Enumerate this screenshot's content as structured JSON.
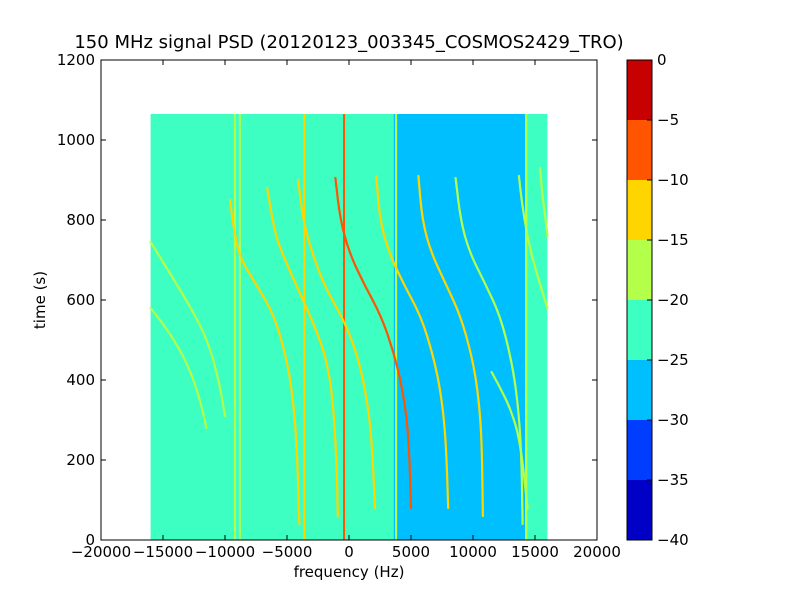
{
  "chart_data": {
    "type": "heatmap",
    "title": "150 MHz signal PSD (20120123_003345_COSMOS2429_TRO)",
    "xlabel": "frequency (Hz)",
    "ylabel": "time (s)",
    "xlim": [
      -20000,
      20000
    ],
    "ylim": [
      0,
      1200
    ],
    "x_ticks": [
      -20000,
      -15000,
      -10000,
      -5000,
      0,
      5000,
      10000,
      15000,
      20000
    ],
    "y_ticks": [
      0,
      200,
      400,
      600,
      800,
      1000,
      1200
    ],
    "x_tick_labels": [
      "−20000",
      "−15000",
      "−10000",
      "−5000",
      "0",
      "5000",
      "10000",
      "15000",
      "20000"
    ],
    "y_tick_labels": [
      "0",
      "200",
      "400",
      "600",
      "800",
      "1000",
      "1200"
    ],
    "data_extent": {
      "x": [
        -16000,
        16000
      ],
      "t": [
        0,
        1065
      ]
    },
    "background_regions": [
      {
        "x_from": -16000,
        "x_to": 3600,
        "level": -22.5
      },
      {
        "x_from": 3600,
        "x_to": 14200,
        "level": -27.5
      },
      {
        "x_from": 14200,
        "x_to": 16000,
        "level": -22.5
      }
    ],
    "vertical_lines": [
      {
        "x": -9200,
        "t_from": 0,
        "t_to": 1065,
        "level": -17.5
      },
      {
        "x": -8800,
        "t_from": 0,
        "t_to": 1065,
        "level": -17.5
      },
      {
        "x": -3600,
        "t_from": 0,
        "t_to": 1065,
        "level": -12.5
      },
      {
        "x": -400,
        "t_from": 0,
        "t_to": 1065,
        "level": -7.5
      },
      {
        "x": 3800,
        "t_from": 0,
        "t_to": 1065,
        "level": -20
      },
      {
        "x": 14300,
        "t_from": 0,
        "t_to": 1065,
        "level": -17.5
      }
    ],
    "doppler_tracks": [
      {
        "level": -17.5,
        "points": [
          [
            -16000,
            745
          ],
          [
            -13500,
            620
          ],
          [
            -11500,
            510
          ],
          [
            -10500,
            400
          ],
          [
            -10000,
            310
          ]
        ]
      },
      {
        "level": -17.5,
        "points": [
          [
            -16000,
            580
          ],
          [
            -14500,
            520
          ],
          [
            -13000,
            440
          ],
          [
            -12000,
            350
          ],
          [
            -11500,
            280
          ]
        ]
      },
      {
        "level": -15,
        "points": [
          [
            -9600,
            850
          ],
          [
            -9200,
            760
          ],
          [
            -8700,
            700
          ],
          [
            -7500,
            640
          ],
          [
            -6000,
            560
          ],
          [
            -5000,
            450
          ],
          [
            -4500,
            350
          ],
          [
            -4200,
            230
          ],
          [
            -4000,
            40
          ]
        ]
      },
      {
        "level": -12.5,
        "points": [
          [
            -6600,
            880
          ],
          [
            -6000,
            770
          ],
          [
            -5300,
            710
          ],
          [
            -4000,
            620
          ],
          [
            -2700,
            530
          ],
          [
            -1800,
            450
          ],
          [
            -1300,
            350
          ],
          [
            -1000,
            200
          ],
          [
            -900,
            60
          ]
        ]
      },
      {
        "level": -12.5,
        "points": [
          [
            -4100,
            900
          ],
          [
            -3700,
            800
          ],
          [
            -3000,
            720
          ],
          [
            -1900,
            630
          ],
          [
            -600,
            560
          ],
          [
            500,
            480
          ],
          [
            1300,
            380
          ],
          [
            1800,
            270
          ],
          [
            2100,
            80
          ]
        ]
      },
      {
        "level": -7.5,
        "points": [
          [
            -1100,
            905
          ],
          [
            -700,
            800
          ],
          [
            0,
            720
          ],
          [
            1200,
            640
          ],
          [
            2600,
            560
          ],
          [
            3600,
            470
          ],
          [
            4300,
            380
          ],
          [
            4800,
            270
          ],
          [
            5000,
            80
          ]
        ]
      },
      {
        "level": -12.5,
        "points": [
          [
            2200,
            910
          ],
          [
            2500,
            800
          ],
          [
            3200,
            720
          ],
          [
            4400,
            640
          ],
          [
            5800,
            560
          ],
          [
            6800,
            460
          ],
          [
            7400,
            370
          ],
          [
            7800,
            260
          ],
          [
            8000,
            80
          ]
        ]
      },
      {
        "level": -15,
        "points": [
          [
            5600,
            910
          ],
          [
            5900,
            800
          ],
          [
            6600,
            720
          ],
          [
            7800,
            640
          ],
          [
            9000,
            560
          ],
          [
            9900,
            460
          ],
          [
            10400,
            370
          ],
          [
            10700,
            260
          ],
          [
            10800,
            60
          ]
        ]
      },
      {
        "level": -17.5,
        "points": [
          [
            8600,
            905
          ],
          [
            9000,
            800
          ],
          [
            9700,
            720
          ],
          [
            11000,
            640
          ],
          [
            12200,
            560
          ],
          [
            13100,
            450
          ],
          [
            13600,
            350
          ],
          [
            13900,
            220
          ],
          [
            14000,
            40
          ]
        ]
      },
      {
        "level": -17.5,
        "points": [
          [
            11500,
            420
          ],
          [
            12200,
            380
          ],
          [
            13000,
            330
          ],
          [
            13800,
            250
          ],
          [
            14400,
            80
          ]
        ]
      },
      {
        "level": -17.5,
        "points": [
          [
            13700,
            910
          ],
          [
            14000,
            830
          ],
          [
            14500,
            740
          ],
          [
            15200,
            660
          ],
          [
            16000,
            580
          ]
        ]
      },
      {
        "level": -17.5,
        "points": [
          [
            15400,
            930
          ],
          [
            15600,
            860
          ],
          [
            15900,
            790
          ],
          [
            16000,
            760
          ]
        ]
      }
    ],
    "colorbar": {
      "vmin": -40,
      "vmax": 0,
      "levels": [
        -40,
        -35,
        -30,
        -25,
        -20,
        -15,
        -10,
        -5,
        0
      ],
      "tick_labels": [
        "−40",
        "−35",
        "−30",
        "−25",
        "−20",
        "−15",
        "−10",
        "−5",
        "0"
      ],
      "colors": [
        "#0000c7",
        "#003dff",
        "#00bfff",
        "#3dffc2",
        "#b3ff4a",
        "#ffd500",
        "#ff5400",
        "#c70000"
      ]
    }
  }
}
